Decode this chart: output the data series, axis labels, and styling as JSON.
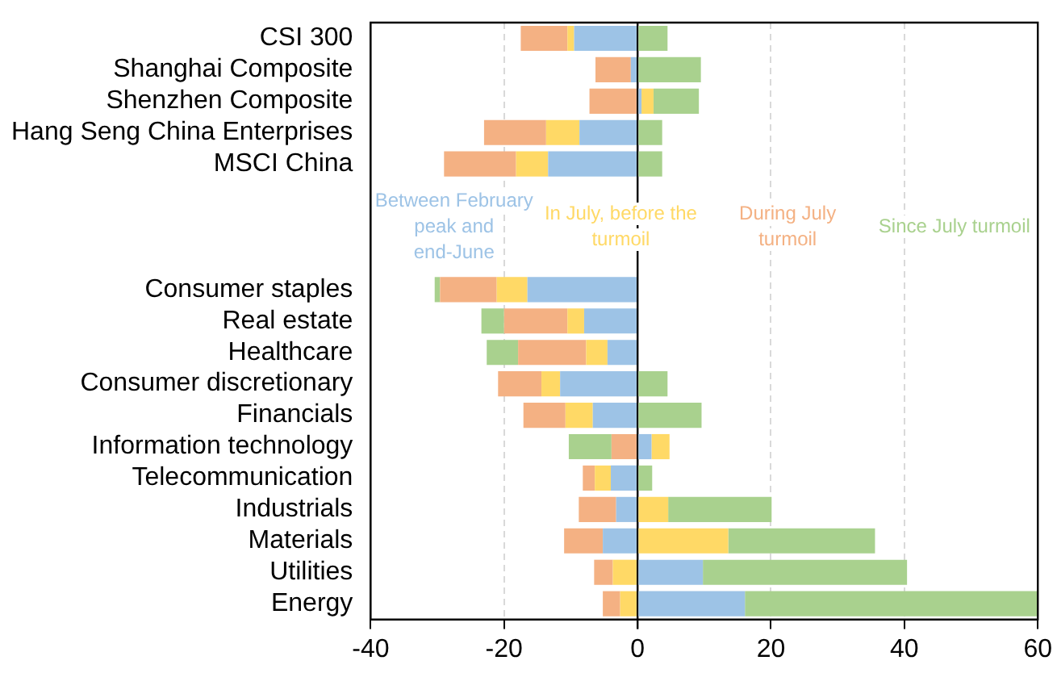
{
  "chart_data": {
    "type": "bar",
    "orientation": "horizontal",
    "stacked": true,
    "categories": [
      "CSI 300",
      "Shanghai Composite",
      "Shenzhen Composite",
      "Hang Seng China Enterprises",
      "MSCI China",
      null,
      null,
      null,
      "Consumer staples",
      "Real estate",
      "Healthcare",
      "Consumer discretionary",
      "Financials",
      "Information technology",
      "Telecommunication",
      "Industrials",
      "Materials",
      "Utilities",
      "Energy"
    ],
    "series": [
      {
        "name": "Between February peak and end-June",
        "color": "#9dc3e6",
        "values": [
          -9.5,
          -1,
          0.6,
          -8.7,
          -13.4,
          null,
          null,
          null,
          -16.5,
          -8,
          -4.5,
          -11.6,
          -6.7,
          2.1,
          -4,
          -3.2,
          -5.2,
          9.8,
          16.1
        ]
      },
      {
        "name": "In July, before the turmoil",
        "color": "#ffd966",
        "values": [
          -1,
          null,
          1.8,
          -5,
          -4.8,
          null,
          null,
          null,
          -4.6,
          -2.5,
          -3.2,
          -2.8,
          -4.1,
          2.7,
          -2.4,
          4.6,
          13.6,
          -3.7,
          -2.6
        ]
      },
      {
        "name": "During July turmoil",
        "color": "#f4b183",
        "values": [
          -7,
          -5.3,
          -7.2,
          -9.3,
          -10.8,
          null,
          null,
          null,
          -8.5,
          -9.5,
          -10.2,
          -6.5,
          -6.3,
          -3.9,
          -1.8,
          -5.6,
          -5.8,
          -2.8,
          -2.6
        ]
      },
      {
        "name": "Since July turmoil",
        "color": "#a9d18e",
        "values": [
          4.5,
          9.5,
          6.8,
          3.7,
          3.7,
          null,
          null,
          null,
          -0.8,
          -3.4,
          -4.7,
          4.5,
          9.6,
          -6.4,
          2.2,
          15.5,
          22,
          30.6,
          44
        ]
      }
    ],
    "xlim": [
      -40,
      60
    ],
    "xticks": [
      -40,
      -20,
      0,
      20,
      40,
      60
    ],
    "grid": "x"
  }
}
